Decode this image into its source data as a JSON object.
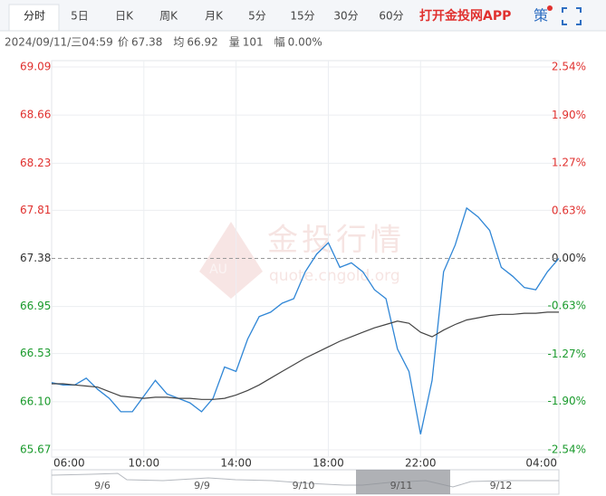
{
  "toolbar": {
    "tabs": [
      "分时",
      "5日",
      "日K",
      "周K",
      "月K",
      "5分",
      "15分",
      "30分",
      "60分"
    ],
    "app_link": "打开金投网APP",
    "strategy": "策"
  },
  "info": {
    "datetime": "2024/09/11/三04:59",
    "items": [
      {
        "label": "价",
        "value": "67.38"
      },
      {
        "label": "均",
        "value": "66.92"
      },
      {
        "label": "量",
        "value": "101"
      },
      {
        "label": "幅",
        "value": "0.00%"
      }
    ]
  },
  "watermark": {
    "title": "金投行情",
    "url": "quote.cngold.org",
    "logo": "AU"
  },
  "navigator": {
    "labels": [
      "9/6",
      "9/9",
      "9/10",
      "9/11",
      "9/12"
    ]
  },
  "chart_data": {
    "type": "line",
    "x": [
      "06:00",
      "06:30",
      "07:00",
      "07:30",
      "08:00",
      "08:30",
      "09:00",
      "09:30",
      "10:00",
      "10:30",
      "11:00",
      "11:30",
      "12:00",
      "12:30",
      "13:00",
      "13:30",
      "14:00",
      "14:30",
      "15:00",
      "15:30",
      "16:00",
      "16:30",
      "17:00",
      "17:30",
      "18:00",
      "18:30",
      "19:00",
      "19:30",
      "20:00",
      "20:30",
      "21:00",
      "21:30",
      "22:00",
      "22:30",
      "23:00",
      "23:30",
      "00:00",
      "00:30",
      "01:00",
      "01:30",
      "02:00",
      "02:30",
      "03:00",
      "03:30",
      "04:00"
    ],
    "xlim": [
      "06:00",
      "04:00"
    ],
    "xticks": [
      "06:00",
      "10:00",
      "14:00",
      "18:00",
      "22:00",
      "04:00"
    ],
    "ylim": [
      65.67,
      69.09
    ],
    "yticks": [
      65.67,
      {
        "value": 66.1,
        "label": "66.10"
      },
      66.53,
      66.95,
      67.38,
      67.81,
      68.23,
      68.66,
      69.09
    ],
    "y2lim": [
      -2.54,
      2.54
    ],
    "y2ticks": [
      {
        "value": -2.54,
        "label": "-2.54%"
      },
      {
        "value": -1.9,
        "label": "-1.90%"
      },
      {
        "value": -1.27,
        "label": "-1.27%"
      },
      {
        "value": -0.63,
        "label": "-0.63%"
      },
      {
        "value": 0,
        "label": "0.00%"
      },
      {
        "value": 0.63,
        "label": "0.63%"
      },
      {
        "value": 1.27,
        "label": "1.27%"
      },
      {
        "value": 1.9,
        "label": "1.90%"
      },
      {
        "value": 2.54,
        "label": "2.54%"
      }
    ],
    "base": 67.38,
    "grid": true,
    "up_color": "#e0312f",
    "down_color": "#1a9a2c",
    "series": [
      {
        "color": "#2f86d6",
        "values": [
          66.27,
          66.25,
          66.25,
          66.31,
          66.21,
          66.13,
          66.01,
          66.01,
          66.15,
          66.29,
          66.17,
          66.13,
          66.09,
          66.01,
          66.13,
          66.41,
          66.37,
          66.66,
          66.86,
          66.9,
          66.98,
          67.02,
          67.26,
          67.42,
          67.52,
          67.3,
          67.34,
          67.26,
          67.1,
          67.02,
          66.57,
          66.37,
          65.81,
          66.29,
          67.26,
          67.5,
          67.83,
          67.75,
          67.63,
          67.3,
          67.22,
          67.12,
          67.1,
          67.26,
          67.38
        ]
      },
      {
        "color": "#444444",
        "values": [
          66.26,
          66.26,
          66.25,
          66.24,
          66.23,
          66.19,
          66.15,
          66.14,
          66.13,
          66.14,
          66.14,
          66.13,
          66.13,
          66.12,
          66.12,
          66.13,
          66.16,
          66.2,
          66.25,
          66.31,
          66.37,
          66.43,
          66.49,
          66.54,
          66.59,
          66.64,
          66.68,
          66.72,
          66.76,
          66.79,
          66.82,
          66.8,
          66.72,
          66.68,
          66.74,
          66.79,
          66.83,
          66.85,
          66.87,
          66.88,
          66.88,
          66.89,
          66.89,
          66.9,
          66.9
        ]
      }
    ]
  }
}
